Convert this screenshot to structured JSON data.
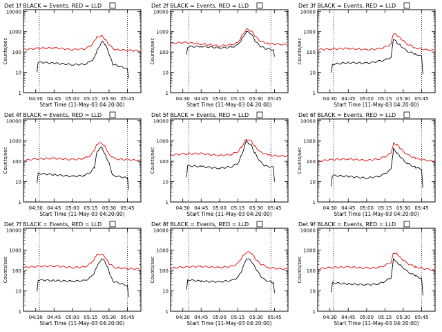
{
  "colors": {
    "events": "#000000",
    "lld": "#e00000",
    "axis": "#000000",
    "background": "#ffffff"
  },
  "shared": {
    "ylabel": "Counts/sec",
    "xlabel": "Start Time (11-May-03 04:20:00)",
    "yticks": [
      "1",
      "10",
      "100",
      "1000",
      "10000"
    ],
    "xticks": [
      "04:30",
      "04:45",
      "05:00",
      "05:15",
      "05:30",
      "05:45"
    ]
  },
  "chart_data": [
    {
      "type": "line",
      "title": "Det 1f BLACK = Events, RED = LLD",
      "ylog": true,
      "ylim": [
        1,
        12000
      ],
      "xlim": [
        "04:20",
        "05:56"
      ],
      "guides": [
        "04:33",
        "05:45"
      ],
      "series": [
        {
          "name": "Events",
          "color": "#000000",
          "x": [
            "04:31",
            "04:32",
            "04:45",
            "05:00",
            "05:10",
            "05:15",
            "05:18",
            "05:20",
            "05:24",
            "05:27",
            "05:30",
            "05:33",
            "05:45",
            "05:46"
          ],
          "y": [
            10,
            32,
            28,
            24,
            25,
            35,
            55,
            110,
            330,
            230,
            80,
            25,
            15,
            5
          ]
        },
        {
          "name": "LLD",
          "color": "#e00000",
          "x": [
            "04:20",
            "04:30",
            "04:45",
            "05:00",
            "05:10",
            "05:15",
            "05:18",
            "05:20",
            "05:24",
            "05:27",
            "05:30",
            "05:35",
            "05:45",
            "05:55"
          ],
          "y": [
            130,
            150,
            160,
            130,
            145,
            200,
            350,
            550,
            620,
            400,
            220,
            130,
            120,
            115
          ]
        }
      ]
    },
    {
      "type": "line",
      "title": "Det 2f BLACK = Events, RED = LLD",
      "ylog": true,
      "ylim": [
        1,
        12000
      ],
      "xlim": [
        "04:20",
        "05:56"
      ],
      "guides": [
        "04:35",
        "05:42"
      ],
      "series": [
        {
          "name": "Events",
          "color": "#000000",
          "x": [
            "04:33",
            "04:34",
            "04:45",
            "05:00",
            "05:10",
            "05:15",
            "05:18",
            "05:22",
            "05:26",
            "05:29",
            "05:33",
            "05:37",
            "05:44",
            "05:45"
          ],
          "y": [
            80,
            180,
            190,
            160,
            170,
            220,
            400,
            1000,
            800,
            350,
            200,
            150,
            130,
            60
          ]
        },
        {
          "name": "LLD",
          "color": "#e00000",
          "x": [
            "04:20",
            "04:30",
            "04:45",
            "05:00",
            "05:10",
            "05:15",
            "05:18",
            "05:22",
            "05:26",
            "05:29",
            "05:33",
            "05:40",
            "05:50",
            "05:55"
          ],
          "y": [
            260,
            300,
            250,
            200,
            230,
            280,
            600,
            1300,
            1100,
            600,
            350,
            260,
            240,
            230
          ]
        }
      ]
    },
    {
      "type": "line",
      "title": "Det 3f BLACK = Events, RED = LLD",
      "ylog": true,
      "ylim": [
        1,
        12000
      ],
      "xlim": [
        "04:20",
        "05:56"
      ],
      "guides": [
        "04:33",
        "05:45"
      ],
      "series": [
        {
          "name": "Events",
          "color": "#000000",
          "x": [
            "04:31",
            "04:32",
            "04:45",
            "05:00",
            "05:10",
            "05:15",
            "05:20",
            "05:22",
            "05:25",
            "05:28",
            "05:33",
            "05:40",
            "05:45",
            "05:46"
          ],
          "y": [
            10,
            25,
            30,
            28,
            35,
            40,
            55,
            450,
            280,
            200,
            110,
            80,
            60,
            8
          ]
        },
        {
          "name": "LLD",
          "color": "#e00000",
          "x": [
            "04:20",
            "04:30",
            "04:45",
            "05:00",
            "05:10",
            "05:15",
            "05:20",
            "05:22",
            "05:25",
            "05:28",
            "05:33",
            "05:40",
            "05:50",
            "05:55"
          ],
          "y": [
            130,
            140,
            150,
            130,
            140,
            170,
            250,
            800,
            650,
            450,
            250,
            160,
            125,
            120
          ]
        }
      ]
    },
    {
      "type": "line",
      "title": "Det 4f BLACK = Events, RED = LLD",
      "ylog": true,
      "ylim": [
        1,
        12000
      ],
      "xlim": [
        "04:20",
        "05:56"
      ],
      "guides": [
        "04:33",
        "05:45"
      ],
      "series": [
        {
          "name": "Events",
          "color": "#000000",
          "x": [
            "04:31",
            "04:32",
            "04:45",
            "05:00",
            "05:10",
            "05:15",
            "05:18",
            "05:20",
            "05:24",
            "05:27",
            "05:30",
            "05:33",
            "05:45",
            "05:46"
          ],
          "y": [
            8,
            25,
            22,
            18,
            20,
            30,
            50,
            300,
            500,
            200,
            80,
            20,
            15,
            4
          ]
        },
        {
          "name": "LLD",
          "color": "#e00000",
          "x": [
            "04:20",
            "04:30",
            "04:45",
            "05:00",
            "05:10",
            "05:15",
            "05:18",
            "05:20",
            "05:24",
            "05:27",
            "05:30",
            "05:35",
            "05:45",
            "05:55"
          ],
          "y": [
            110,
            130,
            140,
            120,
            140,
            200,
            350,
            700,
            800,
            500,
            220,
            130,
            120,
            110
          ]
        }
      ]
    },
    {
      "type": "line",
      "title": "Det 5f BLACK = Events, RED = LLD",
      "ylog": true,
      "ylim": [
        1,
        12000
      ],
      "xlim": [
        "04:20",
        "05:56"
      ],
      "guides": [
        "04:35",
        "05:42"
      ],
      "series": [
        {
          "name": "Events",
          "color": "#000000",
          "x": [
            "04:33",
            "04:34",
            "04:45",
            "05:00",
            "05:10",
            "05:15",
            "05:18",
            "05:22",
            "05:26",
            "05:29",
            "05:33",
            "05:37",
            "05:44",
            "05:45"
          ],
          "y": [
            15,
            60,
            55,
            45,
            55,
            80,
            200,
            1000,
            600,
            250,
            100,
            60,
            50,
            10
          ]
        },
        {
          "name": "LLD",
          "color": "#e00000",
          "x": [
            "04:20",
            "04:30",
            "04:45",
            "05:00",
            "05:10",
            "05:15",
            "05:18",
            "05:22",
            "05:26",
            "05:29",
            "05:33",
            "05:40",
            "05:50",
            "05:55"
          ],
          "y": [
            200,
            230,
            240,
            190,
            220,
            300,
            500,
            1200,
            1000,
            550,
            300,
            200,
            180,
            180
          ]
        }
      ]
    },
    {
      "type": "line",
      "title": "Det 6f BLACK = Events, RED = LLD",
      "ylog": true,
      "ylim": [
        1,
        12000
      ],
      "xlim": [
        "04:20",
        "05:56"
      ],
      "guides": [
        "04:33",
        "05:45"
      ],
      "series": [
        {
          "name": "Events",
          "color": "#000000",
          "x": [
            "04:31",
            "04:32",
            "04:45",
            "05:00",
            "05:10",
            "05:15",
            "05:20",
            "05:22",
            "05:25",
            "05:28",
            "05:33",
            "05:40",
            "05:45",
            "05:46"
          ],
          "y": [
            6,
            20,
            18,
            15,
            18,
            25,
            40,
            400,
            250,
            150,
            80,
            50,
            40,
            5
          ]
        },
        {
          "name": "LLD",
          "color": "#e00000",
          "x": [
            "04:20",
            "04:30",
            "04:45",
            "05:00",
            "05:10",
            "05:15",
            "05:20",
            "05:22",
            "05:25",
            "05:28",
            "05:33",
            "05:40",
            "05:50",
            "05:55"
          ],
          "y": [
            100,
            120,
            130,
            110,
            130,
            170,
            250,
            750,
            650,
            400,
            220,
            140,
            110,
            100
          ]
        }
      ]
    },
    {
      "type": "line",
      "title": "Det 7f BLACK = Events, RED = LLD",
      "ylog": true,
      "ylim": [
        1,
        12000
      ],
      "xlim": [
        "04:20",
        "05:56"
      ],
      "guides": [
        "04:33",
        "05:45"
      ],
      "series": [
        {
          "name": "Events",
          "color": "#000000",
          "x": [
            "04:31",
            "04:32",
            "04:45",
            "05:00",
            "05:10",
            "05:15",
            "05:18",
            "05:20",
            "05:24",
            "05:27",
            "05:30",
            "05:33",
            "05:45",
            "05:46"
          ],
          "y": [
            10,
            35,
            32,
            30,
            32,
            45,
            80,
            150,
            400,
            250,
            90,
            30,
            18,
            5
          ]
        },
        {
          "name": "LLD",
          "color": "#e00000",
          "x": [
            "04:20",
            "04:30",
            "04:45",
            "05:00",
            "05:10",
            "05:15",
            "05:18",
            "05:20",
            "05:24",
            "05:27",
            "05:30",
            "05:35",
            "05:45",
            "05:55"
          ],
          "y": [
            140,
            160,
            170,
            140,
            150,
            220,
            380,
            600,
            650,
            420,
            220,
            140,
            125,
            120
          ]
        }
      ]
    },
    {
      "type": "line",
      "title": "Det 8f BLACK = Events, RED = LLD",
      "ylog": true,
      "ylim": [
        1,
        12000
      ],
      "xlim": [
        "04:20",
        "05:56"
      ],
      "guides": [
        "04:35",
        "05:42"
      ],
      "series": [
        {
          "name": "Events",
          "color": "#000000",
          "x": [
            "04:33",
            "04:34",
            "04:45",
            "05:00",
            "05:10",
            "05:15",
            "05:18",
            "05:22",
            "05:26",
            "05:29",
            "05:33",
            "05:37",
            "05:44",
            "05:45"
          ],
          "y": [
            12,
            35,
            30,
            28,
            32,
            45,
            90,
            400,
            300,
            150,
            60,
            35,
            25,
            8
          ]
        },
        {
          "name": "LLD",
          "color": "#e00000",
          "x": [
            "04:20",
            "04:30",
            "04:45",
            "05:00",
            "05:10",
            "05:15",
            "05:18",
            "05:22",
            "05:26",
            "05:29",
            "05:33",
            "05:40",
            "05:50",
            "05:55"
          ],
          "y": [
            130,
            150,
            160,
            140,
            160,
            220,
            400,
            800,
            750,
            400,
            220,
            140,
            120,
            120
          ]
        }
      ]
    },
    {
      "type": "line",
      "title": "Det 9f BLACK = Events, RED = LLD",
      "ylog": true,
      "ylim": [
        1,
        12000
      ],
      "xlim": [
        "04:20",
        "05:56"
      ],
      "guides": [
        "04:33",
        "05:45"
      ],
      "series": [
        {
          "name": "Events",
          "color": "#000000",
          "x": [
            "04:31",
            "04:32",
            "04:45",
            "05:00",
            "05:10",
            "05:15",
            "05:20",
            "05:22",
            "05:25",
            "05:28",
            "05:33",
            "05:40",
            "05:45",
            "05:46"
          ],
          "y": [
            8,
            25,
            22,
            20,
            22,
            30,
            45,
            400,
            250,
            180,
            90,
            55,
            40,
            6
          ]
        },
        {
          "name": "LLD",
          "color": "#e00000",
          "x": [
            "04:20",
            "04:30",
            "04:45",
            "05:00",
            "05:10",
            "05:15",
            "05:20",
            "05:22",
            "05:25",
            "05:28",
            "05:33",
            "05:40",
            "05:50",
            "05:55"
          ],
          "y": [
            120,
            140,
            150,
            130,
            140,
            180,
            260,
            750,
            650,
            420,
            230,
            150,
            115,
            110
          ]
        }
      ]
    }
  ]
}
